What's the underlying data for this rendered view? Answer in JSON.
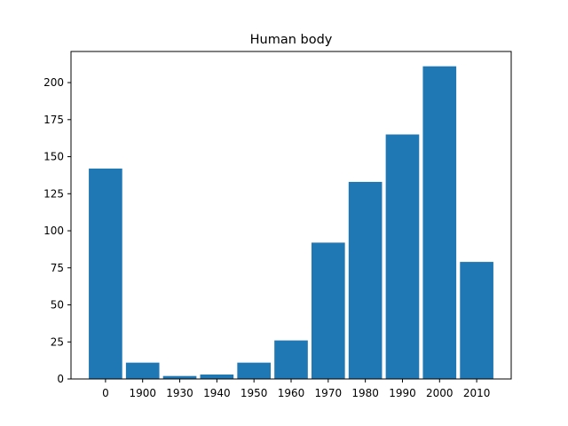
{
  "chart_data": {
    "type": "bar",
    "title": "Human body",
    "xlabel": "",
    "ylabel": "",
    "categories": [
      "0",
      "1900",
      "1930",
      "1940",
      "1950",
      "1960",
      "1970",
      "1980",
      "1990",
      "2000",
      "2010"
    ],
    "values": [
      142,
      11,
      2,
      3,
      11,
      26,
      92,
      133,
      165,
      211,
      79
    ],
    "ylim": [
      0,
      221
    ],
    "yticks": [
      0,
      25,
      50,
      75,
      100,
      125,
      150,
      175,
      200
    ],
    "grid": false,
    "bar_color": "#1f77b4"
  }
}
